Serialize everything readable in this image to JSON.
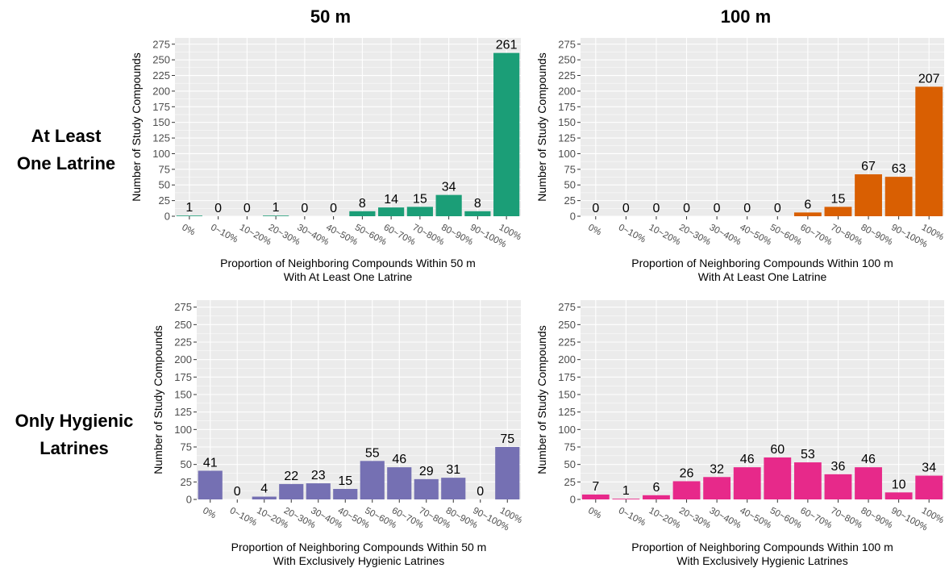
{
  "column_titles": [
    "50 m",
    "100 m"
  ],
  "row_labels": [
    [
      "At Least",
      "One Latrine"
    ],
    [
      "Only Hygienic",
      "Latrines"
    ]
  ],
  "colors": {
    "panel_bg": "#EBEBEB",
    "grid": "#FFFFFF",
    "tick_text": "#4D4D4D"
  },
  "chart_data": [
    {
      "type": "bar",
      "categories": [
        "0%",
        "0~10%",
        "10~20%",
        "20~30%",
        "30~40%",
        "40~50%",
        "50~60%",
        "60~70%",
        "70~80%",
        "80~90%",
        "90~100%",
        "100%"
      ],
      "values": [
        1,
        0,
        0,
        1,
        0,
        0,
        8,
        14,
        15,
        34,
        8,
        261
      ],
      "color": "#1B9E77",
      "ylabel": "Number of Study Compounds",
      "xlabel": [
        "Proportion of Neighboring Compounds Within 50 m",
        "With At Least One Latrine"
      ],
      "yticks": [
        0,
        25,
        50,
        75,
        100,
        125,
        150,
        175,
        200,
        225,
        250,
        275
      ],
      "ylim": [
        0,
        285
      ],
      "grid": true
    },
    {
      "type": "bar",
      "categories": [
        "0%",
        "0~10%",
        "10~20%",
        "20~30%",
        "30~40%",
        "40~50%",
        "50~60%",
        "60~70%",
        "70~80%",
        "80~90%",
        "90~100%",
        "100%"
      ],
      "values": [
        0,
        0,
        0,
        0,
        0,
        0,
        0,
        6,
        15,
        67,
        63,
        207
      ],
      "color": "#D95F02",
      "ylabel": "Number of Study Compounds",
      "xlabel": [
        "Proportion of Neighboring Compounds Within 100 m",
        "With At Least One Latrine"
      ],
      "yticks": [
        0,
        25,
        50,
        75,
        100,
        125,
        150,
        175,
        200,
        225,
        250,
        275
      ],
      "ylim": [
        0,
        285
      ],
      "grid": true
    },
    {
      "type": "bar",
      "categories": [
        "0%",
        "0~10%",
        "10~20%",
        "20~30%",
        "30~40%",
        "40~50%",
        "50~60%",
        "60~70%",
        "70~80%",
        "80~90%",
        "90~100%",
        "100%"
      ],
      "values": [
        41,
        0,
        4,
        22,
        23,
        15,
        55,
        46,
        29,
        31,
        0,
        75
      ],
      "color": "#7570B3",
      "ylabel": "Number of Study Compounds",
      "xlabel": [
        "Proportion of Neighboring Compounds Within 50 m",
        "With Exclusively Hygienic Latrines"
      ],
      "yticks": [
        0,
        25,
        50,
        75,
        100,
        125,
        150,
        175,
        200,
        225,
        250,
        275
      ],
      "ylim": [
        0,
        285
      ],
      "grid": true
    },
    {
      "type": "bar",
      "categories": [
        "0%",
        "0~10%",
        "10~20%",
        "20~30%",
        "30~40%",
        "40~50%",
        "50~60%",
        "60~70%",
        "70~80%",
        "80~90%",
        "90~100%",
        "100%"
      ],
      "values": [
        7,
        1,
        6,
        26,
        32,
        46,
        60,
        53,
        36,
        46,
        10,
        34
      ],
      "color": "#E7298A",
      "ylabel": "Number of Study Compounds",
      "xlabel": [
        "Proportion of Neighboring Compounds Within 100 m",
        "With Exclusively Hygienic Latrines"
      ],
      "yticks": [
        0,
        25,
        50,
        75,
        100,
        125,
        150,
        175,
        200,
        225,
        250,
        275
      ],
      "ylim": [
        0,
        285
      ],
      "grid": true
    }
  ]
}
